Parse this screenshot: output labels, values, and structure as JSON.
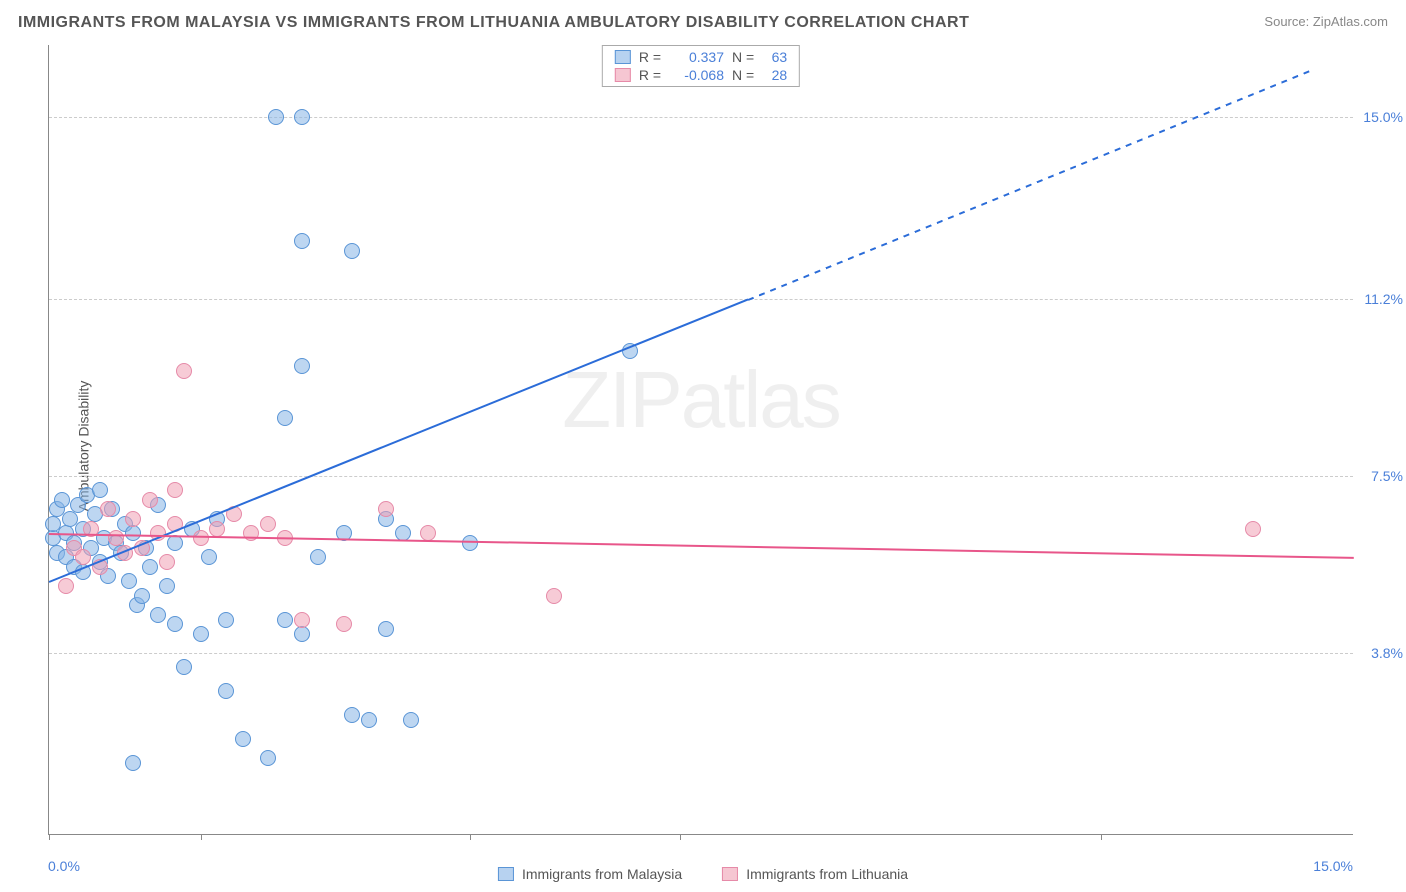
{
  "title": "IMMIGRANTS FROM MALAYSIA VS IMMIGRANTS FROM LITHUANIA AMBULATORY DISABILITY CORRELATION CHART",
  "source_label": "Source:",
  "source_name": "ZipAtlas.com",
  "watermark": "ZIPatlas",
  "y_axis_title": "Ambulatory Disability",
  "chart": {
    "type": "scatter",
    "xlim": [
      0,
      15.5
    ],
    "ylim": [
      0,
      16.5
    ],
    "x_ticks": [
      0,
      1.8,
      5.0,
      7.5,
      12.5
    ],
    "x_label_min": "0.0%",
    "x_label_max": "15.0%",
    "y_gridlines": [
      3.8,
      7.5,
      11.2,
      15.0
    ],
    "y_tick_labels": [
      "3.8%",
      "7.5%",
      "11.2%",
      "15.0%"
    ],
    "background_color": "#ffffff",
    "grid_color": "#cccccc",
    "marker_size": 16,
    "series_a": {
      "name": "Immigrants from Malaysia",
      "color_fill": "#87b4e6",
      "color_stroke": "#5a95d6",
      "R": "0.337",
      "N": "63",
      "trend": {
        "x1": 0,
        "y1": 5.3,
        "x2_solid": 8.3,
        "y2_solid": 11.2,
        "x2_dash": 15.0,
        "y2_dash": 16.0,
        "color": "#2b6cd8"
      },
      "points": [
        [
          0.05,
          6.2
        ],
        [
          0.05,
          6.5
        ],
        [
          0.1,
          6.8
        ],
        [
          0.1,
          5.9
        ],
        [
          0.15,
          7.0
        ],
        [
          0.2,
          6.3
        ],
        [
          0.2,
          5.8
        ],
        [
          0.25,
          6.6
        ],
        [
          0.3,
          6.1
        ],
        [
          0.3,
          5.6
        ],
        [
          0.35,
          6.9
        ],
        [
          0.4,
          6.4
        ],
        [
          0.4,
          5.5
        ],
        [
          0.45,
          7.1
        ],
        [
          0.5,
          6.0
        ],
        [
          0.55,
          6.7
        ],
        [
          0.6,
          5.7
        ],
        [
          0.6,
          7.2
        ],
        [
          0.65,
          6.2
        ],
        [
          0.7,
          5.4
        ],
        [
          0.75,
          6.8
        ],
        [
          0.8,
          6.1
        ],
        [
          0.85,
          5.9
        ],
        [
          0.9,
          6.5
        ],
        [
          0.95,
          5.3
        ],
        [
          1.0,
          6.3
        ],
        [
          1.05,
          4.8
        ],
        [
          1.1,
          5.0
        ],
        [
          1.15,
          6.0
        ],
        [
          1.2,
          5.6
        ],
        [
          1.3,
          4.6
        ],
        [
          1.3,
          6.9
        ],
        [
          1.4,
          5.2
        ],
        [
          1.5,
          4.4
        ],
        [
          1.5,
          6.1
        ],
        [
          1.6,
          3.5
        ],
        [
          1.7,
          6.4
        ],
        [
          1.8,
          4.2
        ],
        [
          1.9,
          5.8
        ],
        [
          2.0,
          6.6
        ],
        [
          2.1,
          3.0
        ],
        [
          2.1,
          4.5
        ],
        [
          2.3,
          2.0
        ],
        [
          2.6,
          1.6
        ],
        [
          2.7,
          15.0
        ],
        [
          2.8,
          8.7
        ],
        [
          2.8,
          4.5
        ],
        [
          3.0,
          4.2
        ],
        [
          3.0,
          15.0
        ],
        [
          3.0,
          9.8
        ],
        [
          3.0,
          12.4
        ],
        [
          3.2,
          5.8
        ],
        [
          3.5,
          6.3
        ],
        [
          3.6,
          12.2
        ],
        [
          3.6,
          2.5
        ],
        [
          3.8,
          2.4
        ],
        [
          4.0,
          4.3
        ],
        [
          4.0,
          6.6
        ],
        [
          4.2,
          6.3
        ],
        [
          4.3,
          2.4
        ],
        [
          5.0,
          6.1
        ],
        [
          6.9,
          10.1
        ],
        [
          1.0,
          1.5
        ]
      ]
    },
    "series_b": {
      "name": "Immigrants from Lithuania",
      "color_fill": "#f0a0b4",
      "color_stroke": "#e68aa8",
      "R": "-0.068",
      "N": "28",
      "trend": {
        "x1": 0,
        "y1": 6.3,
        "x2": 15.5,
        "y2": 5.8,
        "color": "#e8568a"
      },
      "points": [
        [
          0.2,
          5.2
        ],
        [
          0.3,
          6.0
        ],
        [
          0.4,
          5.8
        ],
        [
          0.5,
          6.4
        ],
        [
          0.6,
          5.6
        ],
        [
          0.7,
          6.8
        ],
        [
          0.8,
          6.2
        ],
        [
          0.9,
          5.9
        ],
        [
          1.0,
          6.6
        ],
        [
          1.1,
          6.0
        ],
        [
          1.2,
          7.0
        ],
        [
          1.3,
          6.3
        ],
        [
          1.4,
          5.7
        ],
        [
          1.5,
          6.5
        ],
        [
          1.5,
          7.2
        ],
        [
          1.6,
          9.7
        ],
        [
          1.8,
          6.2
        ],
        [
          2.0,
          6.4
        ],
        [
          2.2,
          6.7
        ],
        [
          2.4,
          6.3
        ],
        [
          2.6,
          6.5
        ],
        [
          2.8,
          6.2
        ],
        [
          3.0,
          4.5
        ],
        [
          3.5,
          4.4
        ],
        [
          4.0,
          6.8
        ],
        [
          4.5,
          6.3
        ],
        [
          6.0,
          5.0
        ],
        [
          14.3,
          6.4
        ]
      ]
    }
  },
  "stats_box": {
    "R_label": "R =",
    "N_label": "N ="
  }
}
